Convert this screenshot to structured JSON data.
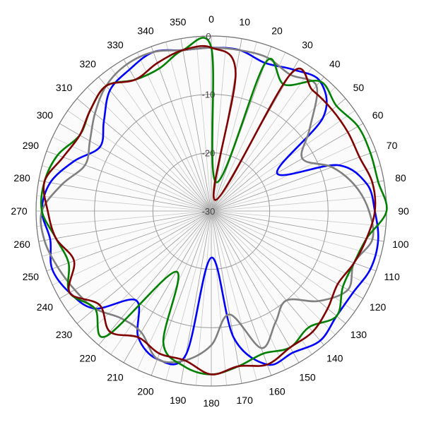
{
  "chart_data": {
    "type": "polar-line",
    "title": "",
    "angle_ticks": [
      0,
      10,
      20,
      30,
      40,
      50,
      60,
      70,
      80,
      90,
      100,
      110,
      120,
      130,
      140,
      150,
      160,
      170,
      180,
      190,
      200,
      210,
      220,
      230,
      240,
      250,
      260,
      270,
      280,
      290,
      300,
      310,
      320,
      330,
      340,
      350
    ],
    "angle_labels": [
      "0",
      "10",
      "20",
      "30",
      "40",
      "50",
      "60",
      "70",
      "80",
      "90",
      "100",
      "110",
      "120",
      "130",
      "140",
      "150",
      "160",
      "170",
      "180",
      "190",
      "200",
      "210",
      "220",
      "230",
      "240",
      "250",
      "260",
      "270",
      "280",
      "290",
      "300",
      "310",
      "320",
      "330",
      "340",
      "350"
    ],
    "angle_direction": "clockwise",
    "zero_angle": "top",
    "radial_range": [
      -30,
      0
    ],
    "radial_ticks": [
      0,
      -10,
      -20,
      -30
    ],
    "radial_labels": [
      "0",
      "-10",
      "-20",
      "-30"
    ],
    "grid": true,
    "series": [
      {
        "color": "#0000ff",
        "angles": [
          0,
          10,
          20,
          30,
          40,
          50,
          60,
          70,
          80,
          90,
          100,
          110,
          120,
          130,
          140,
          150,
          160,
          170,
          180,
          190,
          200,
          210,
          220,
          230,
          240,
          250,
          260,
          270,
          280,
          290,
          300,
          310,
          320,
          330,
          340,
          350
        ],
        "values": [
          -2,
          -2,
          -3,
          -2,
          -1,
          -5,
          -17,
          -7,
          -3,
          -2,
          -1,
          -1,
          -2,
          -2,
          -1,
          -2,
          -2,
          -8,
          -22,
          -5,
          -3,
          -5,
          -10,
          -4,
          -2,
          -1,
          -2,
          -1,
          -2,
          -5,
          -8,
          -6,
          -3,
          -2,
          -1,
          -2
        ]
      },
      {
        "color": "#808080",
        "angles": [
          0,
          10,
          20,
          30,
          40,
          50,
          60,
          70,
          80,
          90,
          100,
          110,
          120,
          130,
          140,
          150,
          160,
          170,
          180,
          190,
          200,
          210,
          220,
          230,
          240,
          250,
          260,
          270,
          280,
          290,
          300,
          310,
          320,
          330,
          340,
          350
        ],
        "values": [
          -2,
          -2,
          -2,
          -3,
          -2,
          -8,
          -12,
          -8,
          -5,
          -3,
          -2,
          -4,
          -3,
          -6,
          -10,
          -8,
          -5,
          -12,
          -7,
          -4,
          -3,
          -6,
          -6,
          -4,
          -3,
          -2,
          -1,
          -1,
          -4,
          -7,
          -6,
          -4,
          -2,
          -1,
          -1,
          -2
        ]
      },
      {
        "color": "#008000",
        "angles": [
          0,
          10,
          20,
          30,
          40,
          50,
          60,
          70,
          80,
          90,
          100,
          110,
          120,
          130,
          140,
          150,
          160,
          170,
          180,
          190,
          200,
          210,
          220,
          230,
          240,
          250,
          260,
          270,
          280,
          290,
          300,
          310,
          320,
          330,
          340,
          350
        ],
        "values": [
          -2,
          -25,
          -3,
          -5,
          -1,
          -2,
          -1,
          -1,
          -1,
          0,
          -3,
          -4,
          -4,
          -2,
          -4,
          -3,
          -4,
          -3,
          -2,
          -3,
          -6,
          -18,
          -2,
          -4,
          -2,
          -4,
          -3,
          -1,
          -1,
          -2,
          -4,
          -3,
          -2,
          -4,
          -4,
          -2
        ]
      },
      {
        "color": "#800000",
        "angles": [
          0,
          10,
          20,
          30,
          40,
          50,
          60,
          70,
          80,
          90,
          100,
          110,
          120,
          130,
          140,
          150,
          160,
          170,
          180,
          190,
          200,
          210,
          220,
          230,
          240,
          250,
          260,
          270,
          280,
          290,
          300,
          310,
          320,
          330,
          340,
          350
        ],
        "values": [
          -2,
          -6,
          -28,
          -3,
          -3,
          -3,
          -3,
          -3,
          -2,
          -2,
          -3,
          -4,
          -5,
          -4,
          -3,
          -3,
          -2,
          -3,
          -2,
          -4,
          -4,
          -5,
          -3,
          -5,
          -2,
          -5,
          -3,
          -2,
          -1,
          -3,
          -4,
          -3,
          -2,
          -4,
          -3,
          -2
        ]
      }
    ]
  }
}
